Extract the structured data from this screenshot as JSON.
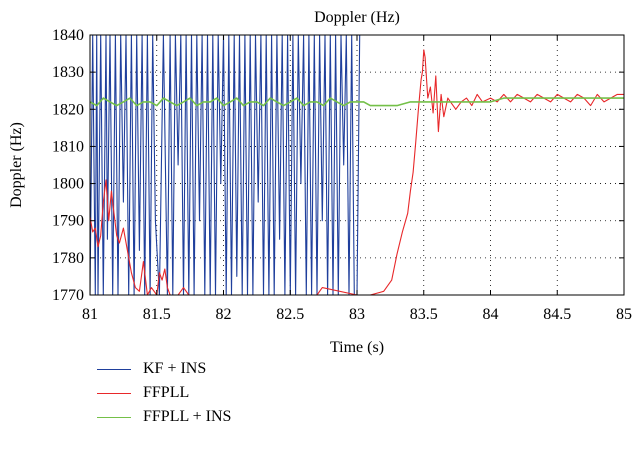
{
  "chart_data": {
    "type": "line",
    "title": "Doppler (Hz)",
    "xlabel": "Time (s)",
    "ylabel": "Doppler (Hz)",
    "xlim": [
      81,
      85
    ],
    "ylim": [
      1770,
      1840
    ],
    "xticks": [
      81,
      81.5,
      82,
      82.5,
      83,
      83.5,
      84,
      84.5,
      85
    ],
    "xtick_labels": [
      "81",
      "81.5",
      "82",
      "82.5",
      "83",
      "83.5",
      "84",
      "84.5",
      "85"
    ],
    "yticks": [
      1770,
      1780,
      1790,
      1800,
      1810,
      1820,
      1830,
      1840
    ],
    "ytick_labels": [
      "1770",
      "1780",
      "1790",
      "1800",
      "1810",
      "1820",
      "1830",
      "1840"
    ],
    "grid": true,
    "legend_placement": "below",
    "series": [
      {
        "name": "KF + INS",
        "color": "#1f3f9c",
        "x": [
          81.0,
          81.02,
          81.04,
          81.05,
          81.06,
          81.08,
          81.1,
          81.12,
          81.13,
          81.15,
          81.17,
          81.19,
          81.21,
          81.23,
          81.25,
          81.27,
          81.29,
          81.31,
          81.33,
          81.35,
          81.37,
          81.39,
          81.41,
          81.43,
          81.45,
          81.47,
          81.49,
          81.52,
          81.55,
          81.58,
          81.6,
          81.62,
          81.64,
          81.66,
          81.68,
          81.7,
          81.72,
          81.74,
          81.76,
          81.78,
          81.8,
          81.82,
          81.84,
          81.86,
          81.88,
          81.9,
          81.92,
          81.94,
          81.96,
          81.98,
          82.0,
          82.02,
          82.04,
          82.06,
          82.08,
          82.1,
          82.12,
          82.14,
          82.16,
          82.18,
          82.2,
          82.22,
          82.24,
          82.26,
          82.28,
          82.3,
          82.32,
          82.34,
          82.36,
          82.38,
          82.4,
          82.42,
          82.44,
          82.46,
          82.48,
          82.5,
          82.52,
          82.54,
          82.56,
          82.58,
          82.6,
          82.62,
          82.64,
          82.66,
          82.68,
          82.7,
          82.72,
          82.74,
          82.76,
          82.78,
          82.8,
          82.82,
          82.84,
          82.86,
          82.88,
          82.9,
          82.92,
          82.94,
          82.96,
          82.98,
          83.0,
          83.02,
          83.04
        ],
        "y": [
          1770,
          1840,
          1770,
          1840,
          1770,
          1840,
          1770,
          1840,
          1785,
          1840,
          1770,
          1840,
          1770,
          1840,
          1795,
          1840,
          1770,
          1840,
          1770,
          1840,
          1782,
          1840,
          1770,
          1840,
          1770,
          1840,
          1790,
          1770,
          1840,
          1770,
          1840,
          1770,
          1840,
          1805,
          1840,
          1770,
          1840,
          1770,
          1840,
          1770,
          1840,
          1790,
          1840,
          1770,
          1840,
          1770,
          1840,
          1770,
          1840,
          1800,
          1840,
          1770,
          1840,
          1770,
          1840,
          1775,
          1840,
          1770,
          1840,
          1770,
          1840,
          1770,
          1840,
          1795,
          1840,
          1770,
          1840,
          1770,
          1840,
          1770,
          1840,
          1785,
          1840,
          1770,
          1840,
          1770,
          1840,
          1770,
          1840,
          1800,
          1840,
          1770,
          1840,
          1770,
          1840,
          1770,
          1840,
          1790,
          1840,
          1770,
          1840,
          1770,
          1840,
          1770,
          1840,
          1805,
          1840,
          1770,
          1840,
          1770,
          1770,
          1840,
          1840
        ]
      },
      {
        "name": "FFPLL",
        "color": "#e8282a",
        "x": [
          81.0,
          81.02,
          81.04,
          81.06,
          81.08,
          81.1,
          81.12,
          81.14,
          81.16,
          81.18,
          81.2,
          81.22,
          81.25,
          81.28,
          81.31,
          81.34,
          81.37,
          81.4,
          81.43,
          81.46,
          81.5,
          81.52,
          81.54,
          81.56,
          81.58,
          81.6,
          81.62,
          81.66,
          81.7,
          81.74,
          82.7,
          82.74,
          83.0,
          83.1,
          83.2,
          83.26,
          83.3,
          83.34,
          83.38,
          83.4,
          83.42,
          83.44,
          83.46,
          83.48,
          83.49,
          83.5,
          83.51,
          83.53,
          83.55,
          83.57,
          83.59,
          83.61,
          83.63,
          83.65,
          83.68,
          83.7,
          83.74,
          83.78,
          83.82,
          83.86,
          83.9,
          83.94,
          84.0,
          84.05,
          84.1,
          84.15,
          84.2,
          84.25,
          84.3,
          84.35,
          84.4,
          84.45,
          84.5,
          84.55,
          84.6,
          84.65,
          84.7,
          84.75,
          84.8,
          84.85,
          84.9,
          84.95,
          85.0
        ],
        "y": [
          1791,
          1787,
          1788,
          1783,
          1786,
          1795,
          1801,
          1790,
          1798,
          1792,
          1786,
          1784,
          1788,
          1782,
          1776,
          1772,
          1771,
          1779,
          1770,
          1772,
          1770,
          1776,
          1774,
          1777,
          1772,
          1770,
          1770,
          1770,
          1772,
          1770,
          1770,
          1772,
          1770,
          1770,
          1771,
          1774,
          1781,
          1787,
          1792,
          1798,
          1803,
          1811,
          1820,
          1828,
          1830,
          1836,
          1834,
          1823,
          1826,
          1819,
          1829,
          1814,
          1824,
          1818,
          1823,
          1822,
          1820,
          1822,
          1823,
          1821,
          1824,
          1822,
          1823,
          1822,
          1824,
          1822,
          1824,
          1823,
          1822,
          1824,
          1823,
          1822,
          1824,
          1823,
          1822,
          1824,
          1823,
          1821,
          1824,
          1822,
          1823,
          1824,
          1824
        ]
      },
      {
        "name": "FFPLL + INS",
        "color": "#74c048",
        "x": [
          81.0,
          81.05,
          81.1,
          81.15,
          81.2,
          81.25,
          81.3,
          81.35,
          81.4,
          81.45,
          81.5,
          81.55,
          81.6,
          81.65,
          81.7,
          81.75,
          81.8,
          81.85,
          81.9,
          81.95,
          82.0,
          82.05,
          82.1,
          82.15,
          82.2,
          82.25,
          82.3,
          82.35,
          82.4,
          82.45,
          82.5,
          82.55,
          82.6,
          82.65,
          82.7,
          82.75,
          82.8,
          82.85,
          82.9,
          82.95,
          83.0,
          83.05,
          83.1,
          83.2,
          83.3,
          83.4,
          83.5,
          83.6,
          83.7,
          83.8,
          83.9,
          84.0,
          84.1,
          84.2,
          84.3,
          84.4,
          84.5,
          84.6,
          84.7,
          84.8,
          84.9,
          85.0
        ],
        "y": [
          1822,
          1821,
          1823,
          1822,
          1821,
          1822,
          1823,
          1821,
          1822,
          1822,
          1821,
          1823,
          1822,
          1821,
          1822,
          1823,
          1821,
          1822,
          1822,
          1823,
          1821,
          1822,
          1823,
          1821,
          1822,
          1822,
          1821,
          1823,
          1822,
          1821,
          1822,
          1823,
          1821,
          1822,
          1822,
          1821,
          1823,
          1822,
          1821,
          1822,
          1822,
          1822,
          1821,
          1821,
          1821,
          1822,
          1822,
          1822,
          1822,
          1822,
          1822,
          1822,
          1823,
          1823,
          1823,
          1823,
          1823,
          1823,
          1823,
          1823,
          1823,
          1823
        ]
      }
    ]
  }
}
